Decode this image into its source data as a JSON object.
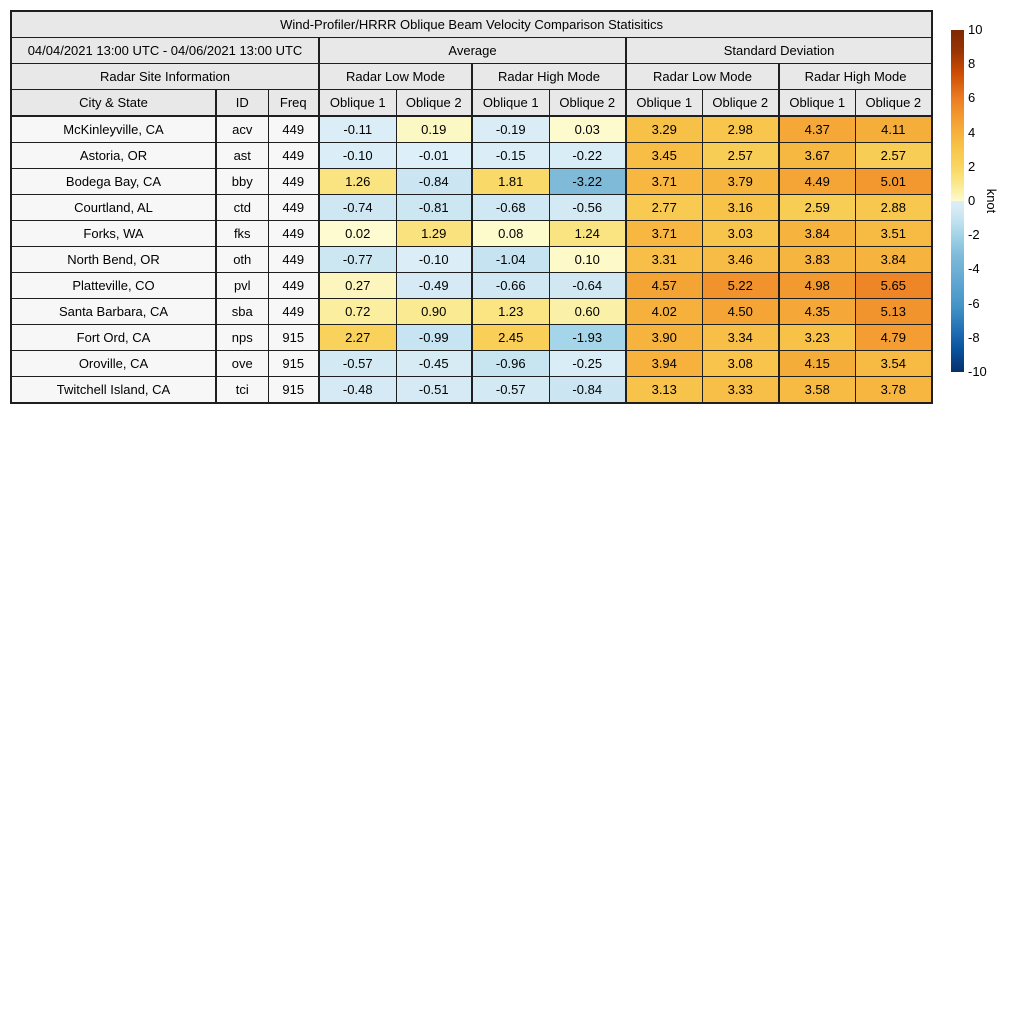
{
  "chart_data": {
    "type": "table-heatmap",
    "title": "Wind-Profiler/HRRR Oblique Beam Velocity Comparison Statisitics",
    "header": {
      "date_range": "04/04/2021 13:00 UTC - 04/06/2021 13:00 UTC",
      "group_average": "Average",
      "group_std": "Standard Deviation",
      "site_info": "Radar Site Information",
      "low_mode": "Radar Low Mode",
      "high_mode": "Radar High Mode",
      "col_city": "City & State",
      "col_id": "ID",
      "col_freq": "Freq",
      "oblique1": "Oblique 1",
      "oblique2": "Oblique 2"
    },
    "rows": [
      {
        "city": "McKinleyville, CA",
        "id": "acv",
        "freq": "449",
        "values": [
          "-0.11",
          "0.19",
          "-0.19",
          "0.03",
          "3.29",
          "2.98",
          "4.37",
          "4.11"
        ]
      },
      {
        "city": "Astoria, OR",
        "id": "ast",
        "freq": "449",
        "values": [
          "-0.10",
          "-0.01",
          "-0.15",
          "-0.22",
          "3.45",
          "2.57",
          "3.67",
          "2.57"
        ]
      },
      {
        "city": "Bodega Bay, CA",
        "id": "bby",
        "freq": "449",
        "values": [
          "1.26",
          "-0.84",
          "1.81",
          "-3.22",
          "3.71",
          "3.79",
          "4.49",
          "5.01"
        ]
      },
      {
        "city": "Courtland, AL",
        "id": "ctd",
        "freq": "449",
        "values": [
          "-0.74",
          "-0.81",
          "-0.68",
          "-0.56",
          "2.77",
          "3.16",
          "2.59",
          "2.88"
        ]
      },
      {
        "city": "Forks, WA",
        "id": "fks",
        "freq": "449",
        "values": [
          "0.02",
          "1.29",
          "0.08",
          "1.24",
          "3.71",
          "3.03",
          "3.84",
          "3.51"
        ]
      },
      {
        "city": "North Bend, OR",
        "id": "oth",
        "freq": "449",
        "values": [
          "-0.77",
          "-0.10",
          "-1.04",
          "0.10",
          "3.31",
          "3.46",
          "3.83",
          "3.84"
        ]
      },
      {
        "city": "Platteville, CO",
        "id": "pvl",
        "freq": "449",
        "values": [
          "0.27",
          "-0.49",
          "-0.66",
          "-0.64",
          "4.57",
          "5.22",
          "4.98",
          "5.65"
        ]
      },
      {
        "city": "Santa Barbara, CA",
        "id": "sba",
        "freq": "449",
        "values": [
          "0.72",
          "0.90",
          "1.23",
          "0.60",
          "4.02",
          "4.50",
          "4.35",
          "5.13"
        ]
      },
      {
        "city": "Fort Ord, CA",
        "id": "nps",
        "freq": "915",
        "values": [
          "2.27",
          "-0.99",
          "2.45",
          "-1.93",
          "3.90",
          "3.34",
          "3.23",
          "4.79"
        ]
      },
      {
        "city": "Oroville, CA",
        "id": "ove",
        "freq": "915",
        "values": [
          "-0.57",
          "-0.45",
          "-0.96",
          "-0.25",
          "3.94",
          "3.08",
          "4.15",
          "3.54"
        ]
      },
      {
        "city": "Twitchell Island, CA",
        "id": "tci",
        "freq": "915",
        "values": [
          "-0.48",
          "-0.51",
          "-0.57",
          "-0.84",
          "3.13",
          "3.33",
          "3.58",
          "3.78"
        ]
      }
    ],
    "colorbar": {
      "label": "knot",
      "min": -10,
      "max": 10,
      "ticks": [
        "10",
        "8",
        "6",
        "4",
        "2",
        "0",
        "-2",
        "-4",
        "-6",
        "-8",
        "-10"
      ],
      "positive_stops": [
        [
          0,
          "#fdfbd0"
        ],
        [
          1,
          "#fae98c"
        ],
        [
          2,
          "#f9d660"
        ],
        [
          3,
          "#f8c64c"
        ],
        [
          4,
          "#f6b13c"
        ],
        [
          5,
          "#f2982f"
        ],
        [
          6,
          "#ec7c22"
        ],
        [
          7.5,
          "#cc4c02"
        ],
        [
          8.75,
          "#993404"
        ],
        [
          10,
          "#7f2704"
        ]
      ],
      "negative_stops": [
        [
          0,
          "#ddeff8"
        ],
        [
          0.5,
          "#d5eaf4"
        ],
        [
          1,
          "#c6e4f1"
        ],
        [
          2,
          "#a3d4e8"
        ],
        [
          3.2,
          "#7fbad8"
        ],
        [
          5,
          "#5ba3d0"
        ],
        [
          6.25,
          "#4292c6"
        ],
        [
          7.5,
          "#2171b5"
        ],
        [
          8.75,
          "#08519c"
        ],
        [
          10,
          "#08306b"
        ]
      ]
    }
  }
}
